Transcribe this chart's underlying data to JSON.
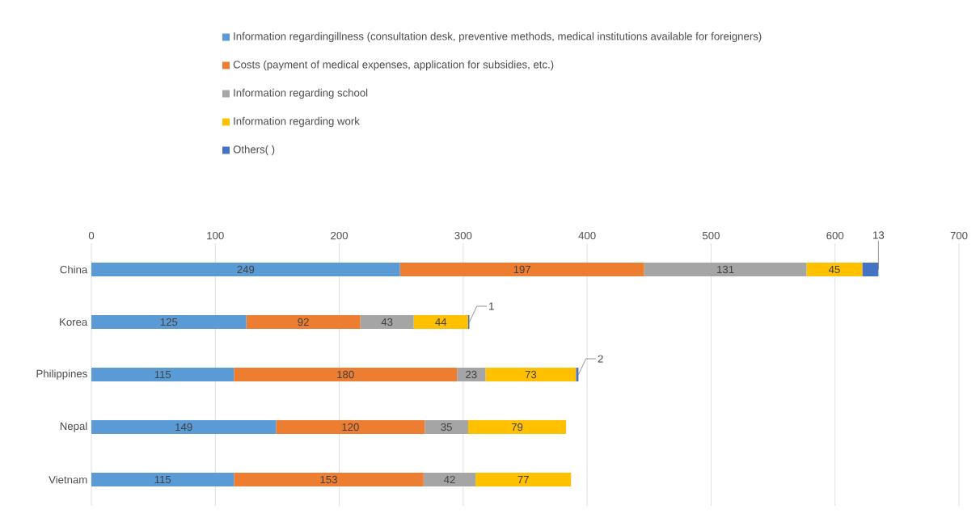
{
  "chart_data": {
    "type": "bar",
    "orientation": "horizontal",
    "stacked": true,
    "categories": [
      "China",
      "Korea",
      "Philippines",
      "Nepal",
      "Vietnam"
    ],
    "series": [
      {
        "name": "Information regardingillness (consultation desk, preventive methods, medical institutions available for foreigners)",
        "color": "#5b9bd5",
        "values": [
          249,
          125,
          115,
          149,
          115
        ]
      },
      {
        "name": "Costs (payment of medical expenses, application for subsidies, etc.)",
        "color": "#ed7d31",
        "values": [
          197,
          92,
          180,
          120,
          153
        ]
      },
      {
        "name": "Information regarding school",
        "color": "#a5a5a5",
        "values": [
          131,
          43,
          23,
          35,
          42
        ]
      },
      {
        "name": "Information regarding work",
        "color": "#ffc000",
        "values": [
          45,
          44,
          73,
          79,
          77
        ]
      },
      {
        "name": "Others(      )",
        "color": "#4472c4",
        "values": [
          13,
          1,
          2,
          null,
          null
        ]
      }
    ],
    "xlim": [
      0,
      700
    ],
    "xticks": [
      0,
      100,
      200,
      300,
      400,
      500,
      600,
      700
    ],
    "grid": "x",
    "legend": "top left",
    "data_labels": true
  }
}
